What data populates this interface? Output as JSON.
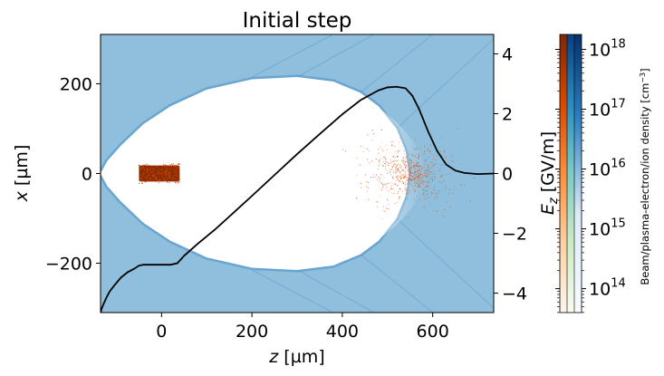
{
  "chart_data": {
    "type": "heatmap",
    "title": "Initial step",
    "xlabel_var": "z",
    "xlabel_unit": " [µm]",
    "ylabel_var": "x",
    "ylabel_unit": " [µm]",
    "y2label_var": "E",
    "y2label_sub": "z",
    "y2label_unit": " [GV/m]",
    "xlim": [
      -135,
      735
    ],
    "ylim": [
      -310,
      310
    ],
    "y2lim": [
      -4.65,
      4.65
    ],
    "xticks": [
      0,
      200,
      400,
      600
    ],
    "yticks": [
      200,
      0,
      -200
    ],
    "y2ticks": [
      4,
      2,
      0,
      -2,
      -4
    ],
    "ytick_labels": [
      "200",
      "0",
      "−200"
    ],
    "y2tick_labels": [
      "4",
      "2",
      "0",
      "−2",
      "−4"
    ],
    "grid": false,
    "bubble": {
      "left": [
        [
          -135,
          0
        ],
        [
          -120,
          28
        ],
        [
          -90,
          62
        ],
        [
          -40,
          110
        ],
        [
          20,
          150
        ],
        [
          100,
          187
        ],
        [
          200,
          210
        ],
        [
          300,
          215
        ],
        [
          380,
          205
        ],
        [
          440,
          180
        ],
        [
          480,
          150
        ],
        [
          520,
          100
        ],
        [
          540,
          50
        ],
        [
          548,
          0
        ]
      ]
    },
    "drive_beam": {
      "z_range": [
        -50,
        40
      ],
      "x_range": [
        -18,
        18
      ],
      "color": "#8c2d04"
    },
    "witness_beam": {
      "z_center": 550,
      "z_sigma": 45,
      "x_sigma": 22,
      "color": "#d94801"
    },
    "ez_series": {
      "name": "",
      "z": [
        -135,
        -132,
        -128,
        -122,
        -115,
        -105,
        -90,
        -75,
        -60,
        -50,
        -40,
        -20,
        0,
        20,
        35,
        50,
        80,
        120,
        160,
        200,
        250,
        300,
        350,
        400,
        440,
        480,
        500,
        520,
        540,
        555,
        570,
        590,
        610,
        630,
        650,
        670,
        700,
        735
      ],
      "Ez": [
        -4.65,
        -4.5,
        -4.35,
        -4.15,
        -3.95,
        -3.75,
        -3.48,
        -3.3,
        -3.18,
        -3.08,
        -3.05,
        -3.05,
        -3.05,
        -3.05,
        -3.0,
        -2.75,
        -2.35,
        -1.85,
        -1.3,
        -0.75,
        -0.05,
        0.65,
        1.32,
        1.98,
        2.45,
        2.78,
        2.88,
        2.9,
        2.85,
        2.6,
        2.15,
        1.4,
        0.75,
        0.3,
        0.1,
        0.02,
        -0.02,
        0.0
      ]
    },
    "colorbar": {
      "label": "Beam/plasma-electron/ion density [cm",
      "label_sup": "−3",
      "label_end": "]",
      "ticks": [
        {
          "base": "10",
          "exp": "18",
          "value": 18
        },
        {
          "base": "10",
          "exp": "17",
          "value": 17
        },
        {
          "base": "10",
          "exp": "16",
          "value": 16
        },
        {
          "base": "10",
          "exp": "15",
          "value": 15
        },
        {
          "base": "10",
          "exp": "14",
          "value": 14
        }
      ],
      "range_log10": [
        13.6,
        18.25
      ],
      "colormaps": [
        "Oranges",
        "GnBu",
        "Blues-light"
      ]
    },
    "colors": {
      "plasma": "#8fbfdc",
      "plasma_dark": "#4a90c8",
      "line": "#000000"
    }
  }
}
